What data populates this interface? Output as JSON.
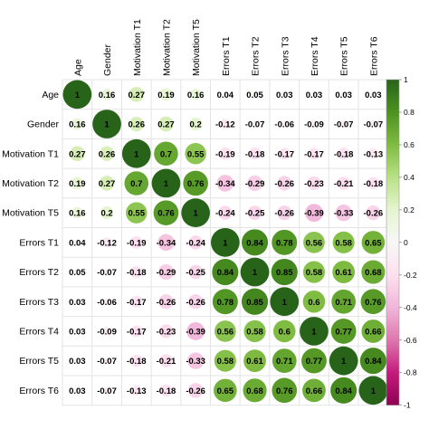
{
  "chart_data": {
    "type": "heatmap",
    "variables": [
      "Age",
      "Gender",
      "Motivation T1",
      "Motivation T2",
      "Motivation T5",
      "Errors T1",
      "Errors T2",
      "Errors T3",
      "Errors T4",
      "Errors T5",
      "Errors T6"
    ],
    "matrix": [
      [
        1,
        0.16,
        0.27,
        0.19,
        0.16,
        0.04,
        0.05,
        0.03,
        0.03,
        0.03,
        0.03
      ],
      [
        0.16,
        1,
        0.26,
        0.27,
        0.2,
        -0.12,
        -0.07,
        -0.06,
        -0.09,
        -0.07,
        -0.07
      ],
      [
        0.27,
        0.26,
        1,
        0.7,
        0.55,
        -0.19,
        -0.18,
        -0.17,
        -0.17,
        -0.18,
        -0.13
      ],
      [
        0.19,
        0.27,
        0.7,
        1,
        0.76,
        -0.34,
        -0.29,
        -0.26,
        -0.23,
        -0.21,
        -0.18
      ],
      [
        0.16,
        0.2,
        0.55,
        0.76,
        1,
        -0.24,
        -0.25,
        -0.26,
        -0.39,
        -0.33,
        -0.26
      ],
      [
        0.04,
        -0.12,
        -0.19,
        -0.34,
        -0.24,
        1,
        0.84,
        0.78,
        0.56,
        0.58,
        0.65
      ],
      [
        0.05,
        -0.07,
        -0.18,
        -0.29,
        -0.25,
        0.84,
        1,
        0.85,
        0.58,
        0.61,
        0.68
      ],
      [
        0.03,
        -0.06,
        -0.17,
        -0.26,
        -0.26,
        0.78,
        0.85,
        1,
        0.6,
        0.71,
        0.76
      ],
      [
        0.03,
        -0.09,
        -0.17,
        -0.23,
        -0.39,
        0.56,
        0.58,
        0.6,
        1,
        0.77,
        0.66
      ],
      [
        0.03,
        -0.07,
        -0.18,
        -0.21,
        -0.33,
        0.58,
        0.61,
        0.71,
        0.77,
        1,
        0.84
      ],
      [
        0.03,
        -0.07,
        -0.13,
        -0.18,
        -0.26,
        0.65,
        0.68,
        0.76,
        0.66,
        0.84,
        1
      ]
    ],
    "colorbar": {
      "range": [
        -1,
        1
      ],
      "ticks": [
        "-1",
        "-0.8",
        "-0.6",
        "-0.4",
        "-0.2",
        "0",
        "0.2",
        "0.4",
        "0.6",
        "0.8",
        "1"
      ],
      "colors": {
        "negative_strong": "#b3106b",
        "neutral": "#f7f7f7",
        "positive_strong": "#1e6b1e"
      }
    },
    "title": "",
    "grid": true,
    "legend_position": "right"
  }
}
